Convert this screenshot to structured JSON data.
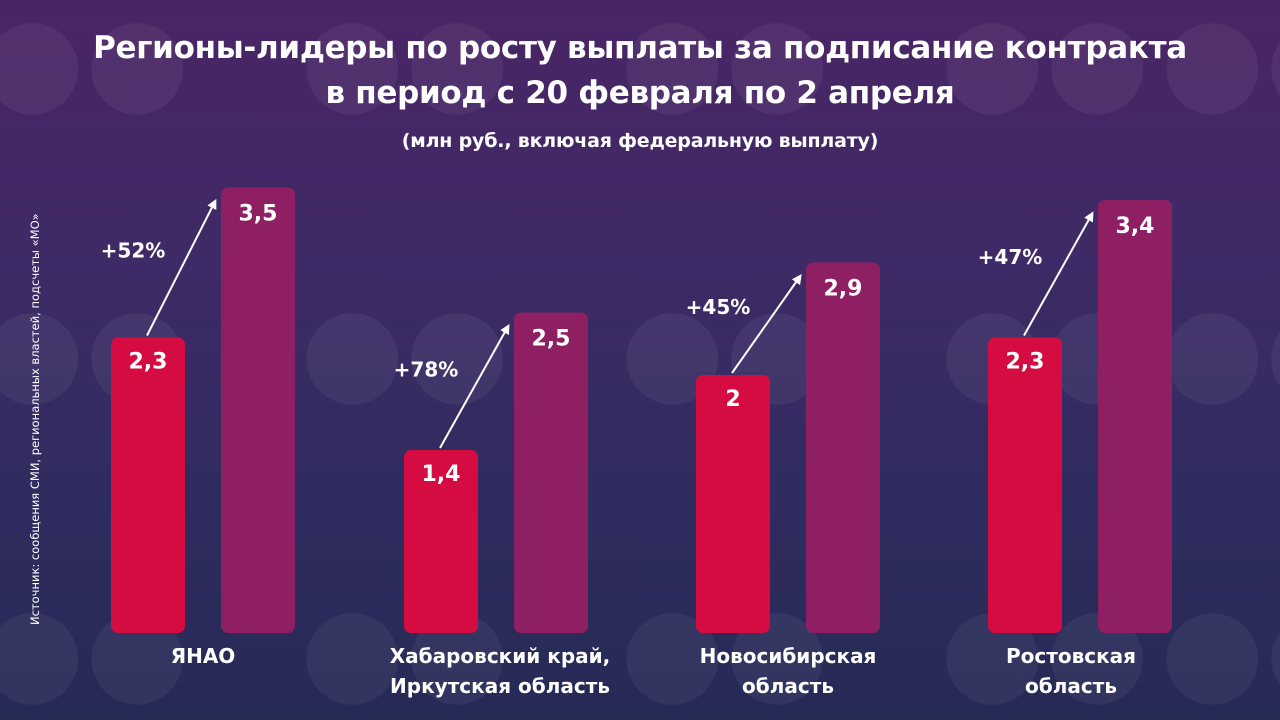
{
  "header": {
    "title_line1": "Регионы-лидеры по росту выплаты за подписание контракта",
    "title_line2": "в период с 20 февраля по 2 апреля",
    "subtitle": "(млн руб., включая федеральную выплату)"
  },
  "source": "Источник: сообщения СМИ, региональных властей, подсчеты «МО»",
  "colors": {
    "before": "#d40c42",
    "after": "#8e1f62",
    "arrow": "#ffffff"
  },
  "chart_data": {
    "type": "bar",
    "title": "Регионы-лидеры по росту выплаты за подписание контракта в период с 20 февраля по 2 апреля",
    "subtitle": "(млн руб., включая федеральную выплату)",
    "categories": [
      [
        "ЯНАО"
      ],
      [
        "Хабаровский край,",
        "Иркутская область"
      ],
      [
        "Новосибирская",
        "область"
      ],
      [
        "Ростовская",
        "область"
      ]
    ],
    "series": [
      {
        "values": [
          2.3,
          1.4,
          2.0,
          2.3
        ],
        "labels": [
          "2,3",
          "1,4",
          "2",
          "2,3"
        ]
      },
      {
        "values": [
          3.5,
          2.5,
          2.9,
          3.4
        ],
        "labels": [
          "3,5",
          "2,5",
          "2,9",
          "3,4"
        ]
      }
    ],
    "growth_labels": [
      "+52%",
      "+78%",
      "+45%",
      "+47%"
    ],
    "ylim": [
      0,
      3.5
    ],
    "grid": false
  }
}
